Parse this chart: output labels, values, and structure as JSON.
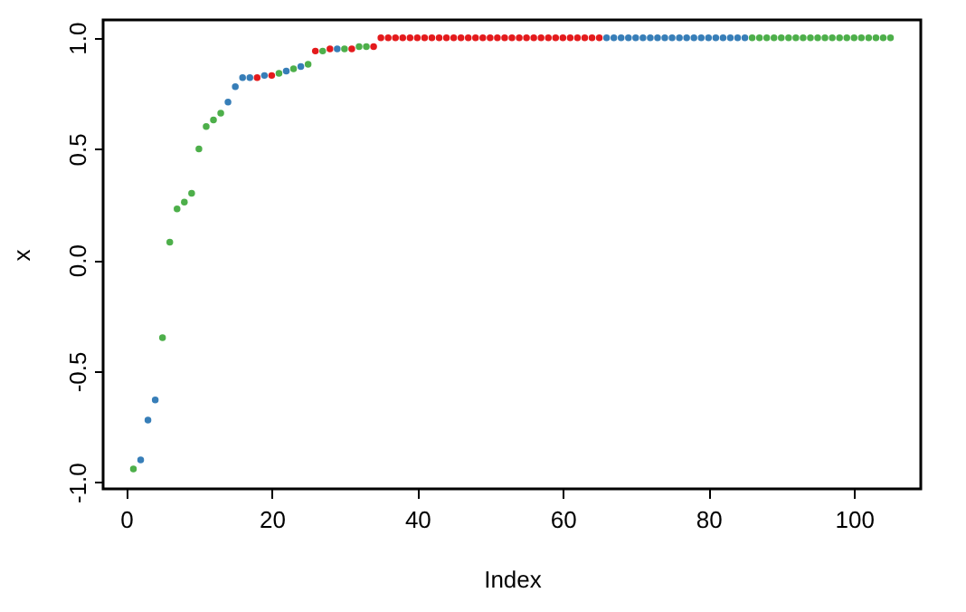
{
  "chart_data": {
    "type": "scatter",
    "xlabel": "Index",
    "ylabel": "x",
    "xlim": [
      -3.16,
      109.16
    ],
    "xticks": [
      0,
      20,
      40,
      60,
      80,
      100
    ],
    "ylim": [
      -1.03,
      1.08
    ],
    "yticks": [
      {
        "value": -1,
        "label": "-1.0"
      },
      {
        "value": -0.5,
        "label": "-0.5"
      },
      {
        "value": 0,
        "label": "0.0"
      },
      {
        "value": 0.5,
        "label": "0.5"
      },
      {
        "value": 1,
        "label": "1.0"
      }
    ],
    "grid": false,
    "marker": "circle",
    "series": [
      {
        "color": "#4daf4a",
        "x": [
          1,
          5,
          6,
          7,
          8,
          9,
          10,
          11,
          12,
          13,
          21,
          23,
          25,
          27,
          30,
          32,
          33,
          86,
          87,
          88,
          89,
          90,
          91,
          92,
          93,
          94,
          95,
          96,
          97,
          98,
          99,
          100,
          101,
          102,
          103,
          104,
          105
        ],
        "values": [
          -0.94,
          -0.35,
          0.08,
          0.23,
          0.26,
          0.3,
          0.5,
          0.6,
          0.63,
          0.66,
          0.84,
          0.86,
          0.88,
          0.94,
          0.95,
          0.96,
          0.96,
          1,
          1,
          1,
          1,
          1,
          1,
          1,
          1,
          1,
          1,
          1,
          1,
          1,
          1,
          1,
          1,
          1,
          1,
          1,
          1
        ]
      },
      {
        "color": "#377eb8",
        "x": [
          2,
          3,
          4,
          14,
          15,
          16,
          17,
          19,
          22,
          24,
          29,
          66,
          67,
          68,
          69,
          70,
          71,
          72,
          73,
          74,
          75,
          76,
          77,
          78,
          79,
          80,
          81,
          82,
          83,
          84,
          85
        ],
        "values": [
          -0.9,
          -0.72,
          -0.63,
          0.71,
          0.78,
          0.82,
          0.82,
          0.83,
          0.85,
          0.87,
          0.95,
          1,
          1,
          1,
          1,
          1,
          1,
          1,
          1,
          1,
          1,
          1,
          1,
          1,
          1,
          1,
          1,
          1,
          1,
          1,
          1
        ]
      },
      {
        "color": "#e41a1c",
        "x": [
          18,
          20,
          26,
          28,
          31,
          34,
          35,
          36,
          37,
          38,
          39,
          40,
          41,
          42,
          43,
          44,
          45,
          46,
          47,
          48,
          49,
          50,
          51,
          52,
          53,
          54,
          55,
          56,
          57,
          58,
          59,
          60,
          61,
          62,
          63,
          64,
          65
        ],
        "values": [
          0.82,
          0.83,
          0.94,
          0.95,
          0.95,
          0.96,
          1,
          1,
          1,
          1,
          1,
          1,
          1,
          1,
          1,
          1,
          1,
          1,
          1,
          1,
          1,
          1,
          1,
          1,
          1,
          1,
          1,
          1,
          1,
          1,
          1,
          1,
          1,
          1,
          1,
          1,
          1
        ]
      }
    ]
  }
}
